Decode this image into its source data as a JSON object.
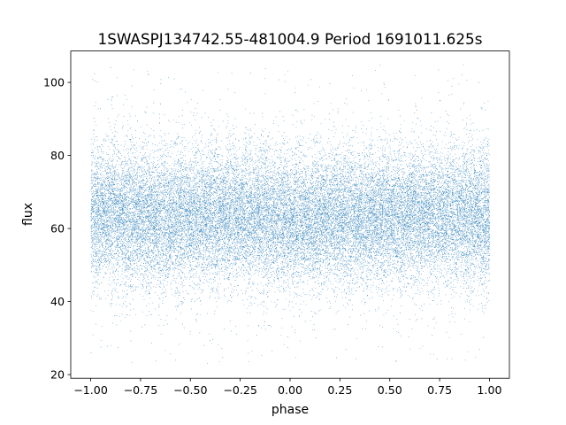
{
  "chart_data": {
    "type": "scatter",
    "title": "1SWASPJ134742.55-481004.9 Period 1691011.625s",
    "xlabel": "phase",
    "ylabel": "flux",
    "xlim": [
      -1.1,
      1.1
    ],
    "ylim": [
      19.0,
      108.6
    ],
    "x_ticks": [
      -1.0,
      -0.75,
      -0.5,
      -0.25,
      0.0,
      0.25,
      0.5,
      0.75,
      1.0
    ],
    "x_tick_labels": [
      "−1.00",
      "−0.75",
      "−0.50",
      "−0.25",
      "0.00",
      "0.25",
      "0.50",
      "0.75",
      "1.00"
    ],
    "y_ticks": [
      20,
      40,
      60,
      80,
      100
    ],
    "y_tick_labels": [
      "20",
      "40",
      "60",
      "80",
      "100"
    ],
    "grid": false,
    "marker_color": "#1f77b4",
    "series": [
      {
        "x_range": [
          -1.0,
          1.0
        ],
        "flux_median": 63,
        "flux_core_band": [
          46,
          82
        ],
        "flux_outlier_range": [
          23,
          105
        ],
        "profile_phase": [
          -1.0,
          -0.75,
          -0.5,
          -0.25,
          0.0,
          0.25,
          0.5,
          0.75,
          1.0
        ],
        "profile_center_flux": [
          64,
          63,
          63,
          64,
          62,
          63,
          63,
          64,
          63
        ]
      }
    ]
  }
}
